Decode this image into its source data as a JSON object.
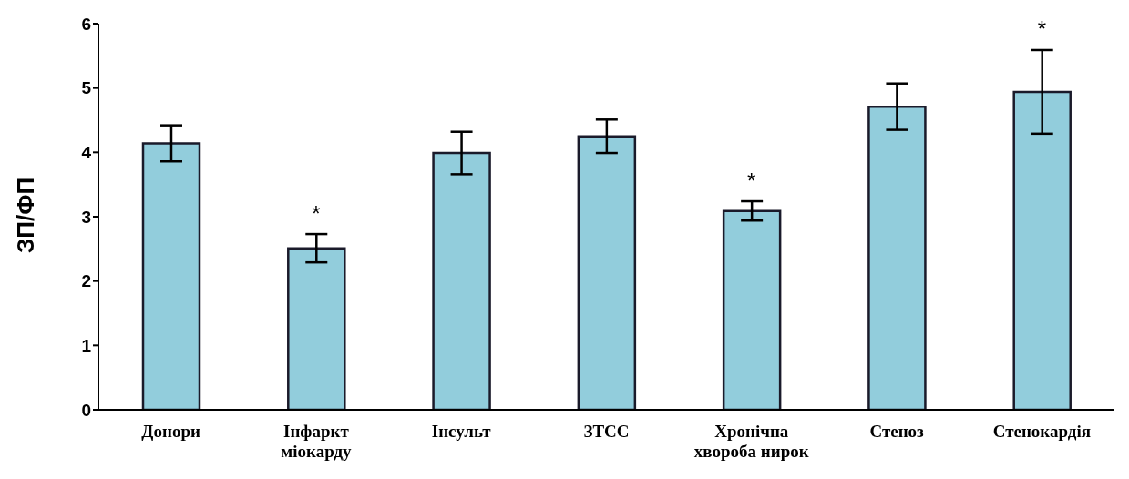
{
  "chart_data": {
    "type": "bar",
    "ylabel": "ЗП/ФП",
    "categories": [
      "Донори",
      "Інфаркт міокарду",
      "Інсульт",
      "ЗТСС",
      "Хронічна хвороба нирок",
      "Стеноз",
      "Стенокардія"
    ],
    "values": [
      4.14,
      2.51,
      3.99,
      4.25,
      3.09,
      4.71,
      4.94
    ],
    "errors": [
      0.28,
      0.22,
      0.33,
      0.26,
      0.15,
      0.36,
      0.65
    ],
    "color": "#92cddc",
    "ylim": [
      0,
      6
    ],
    "yticks": [
      0,
      1,
      2,
      3,
      4,
      5,
      6
    ],
    "grid": false,
    "annotations": [
      {
        "text": "*",
        "x": "Інфаркт міокарду",
        "y": 2.73
      },
      {
        "text": "*",
        "x": "Хронічна хвороба нирок",
        "y": 3.24
      },
      {
        "text": "*",
        "x": "Стенокардія",
        "y": 5.6
      }
    ]
  }
}
